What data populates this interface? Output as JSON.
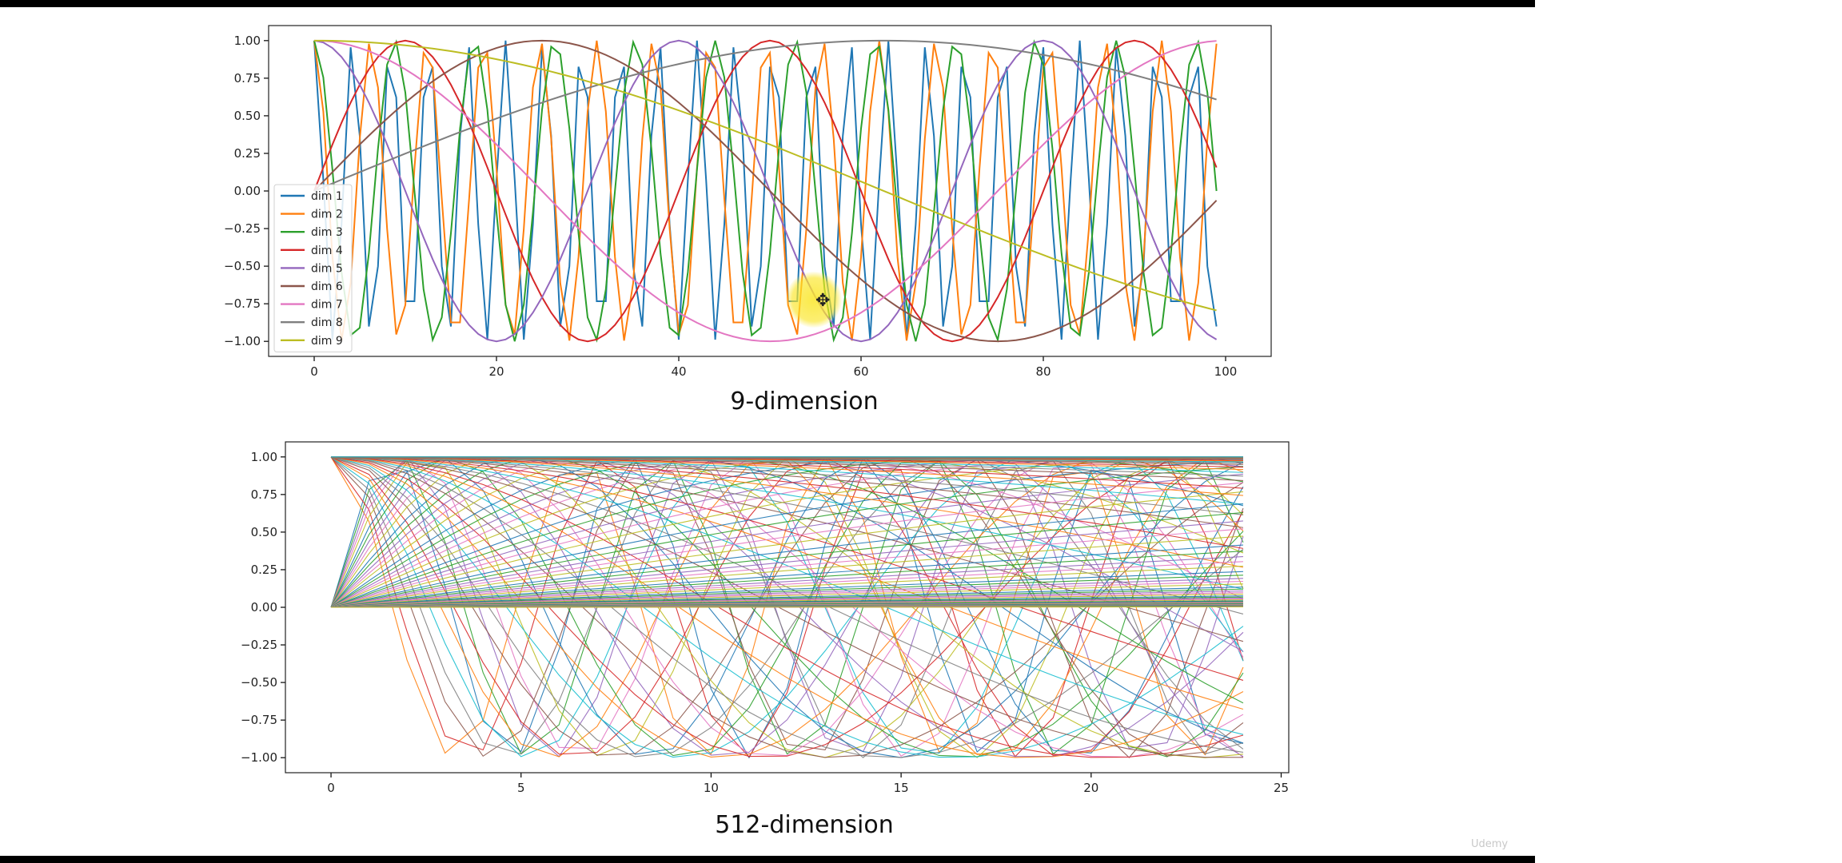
{
  "captions": {
    "top": "9-dimension",
    "bottom": "512-dimension"
  },
  "watermark": "Udemy",
  "cursor_icon": "move-cursor-icon",
  "chart_data": [
    {
      "type": "line",
      "title": "",
      "xlabel": "",
      "ylabel": "",
      "xlim": [
        -5,
        105
      ],
      "ylim": [
        -1.1,
        1.1
      ],
      "x_ticks": [
        0,
        20,
        40,
        60,
        80,
        100
      ],
      "y_ticks": [
        1.0,
        0.75,
        0.5,
        0.25,
        0.0,
        -0.25,
        -0.5,
        -0.75,
        -1.0
      ],
      "x_tick_labels": [
        "0",
        "20",
        "40",
        "60",
        "80",
        "100"
      ],
      "y_tick_labels": [
        "1.00",
        "0.75",
        "0.50",
        "0.25",
        "0.00",
        "−0.25",
        "−0.50",
        "−0.75",
        "−1.00"
      ],
      "legend_position": "center-left",
      "x_range": [
        0,
        99
      ],
      "series": [
        {
          "name": "dim 1",
          "color": "#1f77b4",
          "func": "cos",
          "period": 4.2
        },
        {
          "name": "dim 2",
          "color": "#ff7f0e",
          "func": "cos",
          "period": 6.2
        },
        {
          "name": "dim 3",
          "color": "#2ca02c",
          "func": "cos",
          "period": 8.8
        },
        {
          "name": "dim 4",
          "color": "#d62728",
          "func": "sin",
          "period": 40
        },
        {
          "name": "dim 5",
          "color": "#9467bd",
          "func": "cos",
          "period": 40
        },
        {
          "name": "dim 6",
          "color": "#8c564b",
          "func": "sin",
          "period": 100
        },
        {
          "name": "dim 7",
          "color": "#e377c2",
          "func": "cos",
          "period": 100
        },
        {
          "name": "dim 8",
          "color": "#7f7f7f",
          "func": "sin",
          "period": 250
        },
        {
          "name": "dim 9",
          "color": "#bcbd22",
          "func": "cos",
          "period": 250
        }
      ]
    },
    {
      "type": "line",
      "title": "",
      "xlabel": "",
      "ylabel": "",
      "xlim": [
        -1.2,
        25.2
      ],
      "ylim": [
        -1.1,
        1.1
      ],
      "x_ticks": [
        0,
        5,
        10,
        15,
        20,
        25
      ],
      "y_ticks": [
        1.0,
        0.75,
        0.5,
        0.25,
        0.0,
        -0.25,
        -0.5,
        -0.75,
        -1.0
      ],
      "x_tick_labels": [
        "0",
        "5",
        "10",
        "15",
        "20",
        "25"
      ],
      "y_tick_labels": [
        "1.00",
        "0.75",
        "0.50",
        "0.25",
        "0.00",
        "−0.25",
        "−0.50",
        "−0.75",
        "−1.00"
      ],
      "x_range": [
        0,
        24
      ],
      "series_count": 512,
      "legend": "none",
      "colors": [
        "#1f77b4",
        "#ff7f0e",
        "#2ca02c",
        "#d62728",
        "#9467bd",
        "#8c564b",
        "#e377c2",
        "#7f7f7f",
        "#bcbd22",
        "#17becf"
      ]
    }
  ]
}
